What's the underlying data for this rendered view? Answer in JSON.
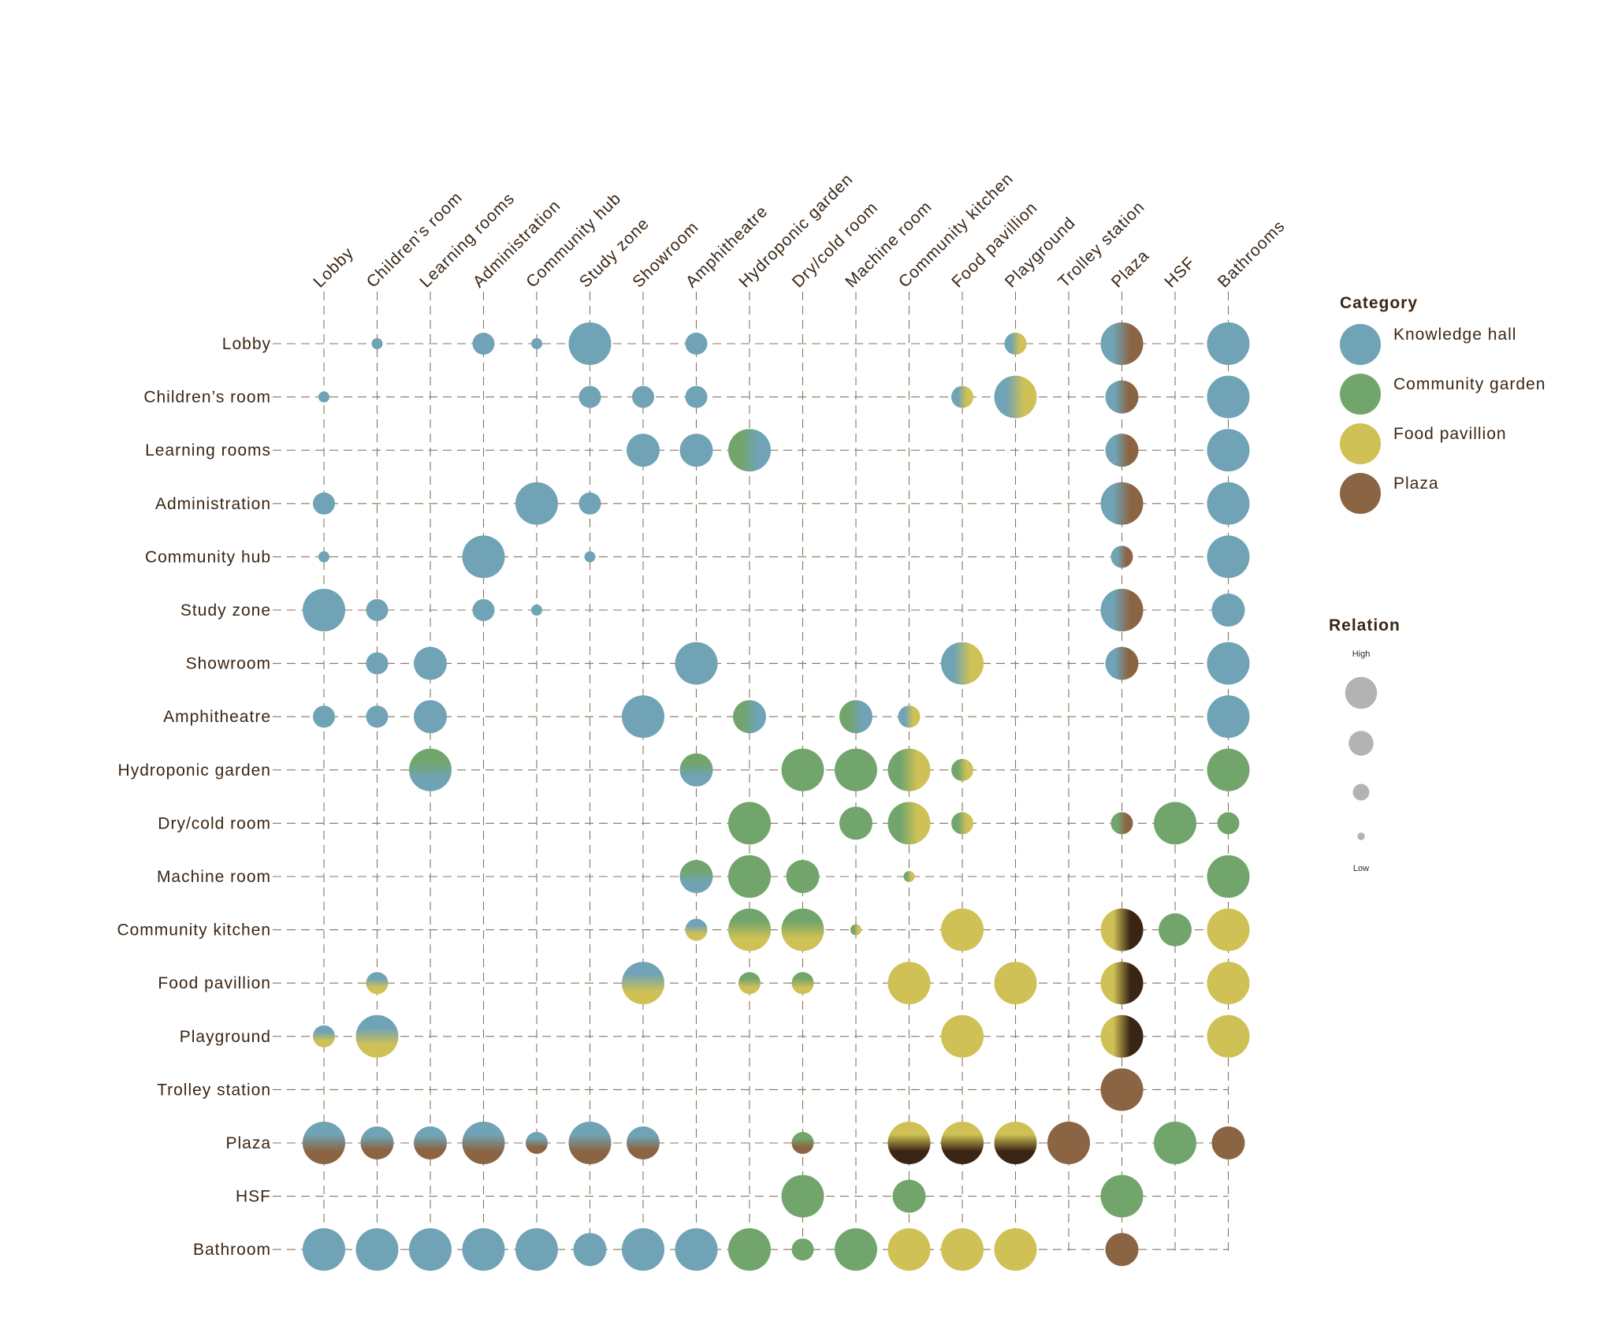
{
  "chart_data": {
    "type": "bubble-matrix",
    "rows": [
      "Lobby",
      "Children’s room",
      "Learning rooms",
      "Administration",
      "Community hub",
      "Study zone",
      "Showroom",
      "Amphitheatre",
      "Hydroponic garden",
      "Dry/cold room",
      "Machine room",
      "Community kitchen",
      "Food pavillion",
      "Playground",
      "Trolley station",
      "Plaza",
      "HSF",
      "Bathroom"
    ],
    "columns": [
      "Lobby",
      "Children’s room",
      "Learning rooms",
      "Administration",
      "Community hub",
      "Study zone",
      "Showroom",
      "Amphitheatre",
      "Hydroponic garden",
      "Dry/cold room",
      "Machine room",
      "Community kitchen",
      "Food pavillion",
      "Playground",
      "Trolley station",
      "Plaza",
      "HSF",
      "Bathrooms"
    ],
    "relation_scale": {
      "min": 1,
      "max": 4,
      "high_label": "High",
      "low_label": "Low"
    },
    "category_colors": {
      "K": "#6fa3b5",
      "G": "#72a56c",
      "F": "#cfc155",
      "P": "#8b6443",
      "D": "#3a2414"
    },
    "points": [
      {
        "r": 0,
        "c": 1,
        "v": 1,
        "cat": "K"
      },
      {
        "r": 0,
        "c": 3,
        "v": 2,
        "cat": "K"
      },
      {
        "r": 0,
        "c": 4,
        "v": 1,
        "cat": "K"
      },
      {
        "r": 0,
        "c": 5,
        "v": 4,
        "cat": "K"
      },
      {
        "r": 0,
        "c": 7,
        "v": 2,
        "cat": "K"
      },
      {
        "r": 0,
        "c": 13,
        "v": 2,
        "cat": "KF",
        "dir": "h"
      },
      {
        "r": 0,
        "c": 15,
        "v": 4,
        "cat": "KP",
        "dir": "h"
      },
      {
        "r": 0,
        "c": 17,
        "v": 4,
        "cat": "K"
      },
      {
        "r": 1,
        "c": 0,
        "v": 1,
        "cat": "K"
      },
      {
        "r": 1,
        "c": 5,
        "v": 2,
        "cat": "K"
      },
      {
        "r": 1,
        "c": 6,
        "v": 2,
        "cat": "K"
      },
      {
        "r": 1,
        "c": 7,
        "v": 2,
        "cat": "K"
      },
      {
        "r": 1,
        "c": 12,
        "v": 2,
        "cat": "KF",
        "dir": "h"
      },
      {
        "r": 1,
        "c": 13,
        "v": 4,
        "cat": "KF",
        "dir": "h"
      },
      {
        "r": 1,
        "c": 15,
        "v": 3,
        "cat": "KP",
        "dir": "h"
      },
      {
        "r": 1,
        "c": 17,
        "v": 4,
        "cat": "K"
      },
      {
        "r": 2,
        "c": 6,
        "v": 3,
        "cat": "K"
      },
      {
        "r": 2,
        "c": 7,
        "v": 3,
        "cat": "K"
      },
      {
        "r": 2,
        "c": 8,
        "v": 4,
        "cat": "GK",
        "dir": "h"
      },
      {
        "r": 2,
        "c": 15,
        "v": 3,
        "cat": "KP",
        "dir": "h"
      },
      {
        "r": 2,
        "c": 17,
        "v": 4,
        "cat": "K"
      },
      {
        "r": 3,
        "c": 0,
        "v": 2,
        "cat": "K"
      },
      {
        "r": 3,
        "c": 4,
        "v": 4,
        "cat": "K"
      },
      {
        "r": 3,
        "c": 5,
        "v": 2,
        "cat": "K"
      },
      {
        "r": 3,
        "c": 15,
        "v": 4,
        "cat": "KP",
        "dir": "h"
      },
      {
        "r": 3,
        "c": 17,
        "v": 4,
        "cat": "K"
      },
      {
        "r": 4,
        "c": 0,
        "v": 1,
        "cat": "K"
      },
      {
        "r": 4,
        "c": 3,
        "v": 4,
        "cat": "K"
      },
      {
        "r": 4,
        "c": 5,
        "v": 1,
        "cat": "K"
      },
      {
        "r": 4,
        "c": 15,
        "v": 2,
        "cat": "KP",
        "dir": "h"
      },
      {
        "r": 4,
        "c": 17,
        "v": 4,
        "cat": "K"
      },
      {
        "r": 5,
        "c": 0,
        "v": 4,
        "cat": "K"
      },
      {
        "r": 5,
        "c": 1,
        "v": 2,
        "cat": "K"
      },
      {
        "r": 5,
        "c": 3,
        "v": 2,
        "cat": "K"
      },
      {
        "r": 5,
        "c": 4,
        "v": 1,
        "cat": "K"
      },
      {
        "r": 5,
        "c": 15,
        "v": 4,
        "cat": "KP",
        "dir": "h"
      },
      {
        "r": 5,
        "c": 17,
        "v": 3,
        "cat": "K"
      },
      {
        "r": 6,
        "c": 1,
        "v": 2,
        "cat": "K"
      },
      {
        "r": 6,
        "c": 2,
        "v": 3,
        "cat": "K"
      },
      {
        "r": 6,
        "c": 7,
        "v": 4,
        "cat": "K"
      },
      {
        "r": 6,
        "c": 12,
        "v": 4,
        "cat": "KF",
        "dir": "h"
      },
      {
        "r": 6,
        "c": 15,
        "v": 3,
        "cat": "KP",
        "dir": "h"
      },
      {
        "r": 6,
        "c": 17,
        "v": 4,
        "cat": "K"
      },
      {
        "r": 7,
        "c": 0,
        "v": 2,
        "cat": "K"
      },
      {
        "r": 7,
        "c": 1,
        "v": 2,
        "cat": "K"
      },
      {
        "r": 7,
        "c": 2,
        "v": 3,
        "cat": "K"
      },
      {
        "r": 7,
        "c": 6,
        "v": 4,
        "cat": "K"
      },
      {
        "r": 7,
        "c": 8,
        "v": 3,
        "cat": "GK",
        "dir": "h"
      },
      {
        "r": 7,
        "c": 10,
        "v": 3,
        "cat": "GK",
        "dir": "h"
      },
      {
        "r": 7,
        "c": 11,
        "v": 2,
        "cat": "KF",
        "dir": "h"
      },
      {
        "r": 7,
        "c": 17,
        "v": 4,
        "cat": "K"
      },
      {
        "r": 8,
        "c": 2,
        "v": 4,
        "cat": "GK",
        "dir": "v"
      },
      {
        "r": 8,
        "c": 7,
        "v": 3,
        "cat": "GK",
        "dir": "v"
      },
      {
        "r": 8,
        "c": 9,
        "v": 4,
        "cat": "G"
      },
      {
        "r": 8,
        "c": 10,
        "v": 4,
        "cat": "G"
      },
      {
        "r": 8,
        "c": 11,
        "v": 4,
        "cat": "GF",
        "dir": "h"
      },
      {
        "r": 8,
        "c": 12,
        "v": 2,
        "cat": "GF",
        "dir": "h"
      },
      {
        "r": 8,
        "c": 17,
        "v": 4,
        "cat": "G"
      },
      {
        "r": 9,
        "c": 8,
        "v": 4,
        "cat": "G"
      },
      {
        "r": 9,
        "c": 10,
        "v": 3,
        "cat": "G"
      },
      {
        "r": 9,
        "c": 11,
        "v": 4,
        "cat": "GF",
        "dir": "h"
      },
      {
        "r": 9,
        "c": 12,
        "v": 2,
        "cat": "GF",
        "dir": "h"
      },
      {
        "r": 9,
        "c": 15,
        "v": 2,
        "cat": "GP",
        "dir": "h"
      },
      {
        "r": 9,
        "c": 16,
        "v": 4,
        "cat": "G"
      },
      {
        "r": 9,
        "c": 17,
        "v": 2,
        "cat": "G"
      },
      {
        "r": 10,
        "c": 7,
        "v": 3,
        "cat": "GK",
        "dir": "v"
      },
      {
        "r": 10,
        "c": 8,
        "v": 4,
        "cat": "G"
      },
      {
        "r": 10,
        "c": 9,
        "v": 3,
        "cat": "G"
      },
      {
        "r": 10,
        "c": 11,
        "v": 1,
        "cat": "GF",
        "dir": "h"
      },
      {
        "r": 10,
        "c": 17,
        "v": 4,
        "cat": "G"
      },
      {
        "r": 11,
        "c": 7,
        "v": 2,
        "cat": "KF",
        "dir": "v"
      },
      {
        "r": 11,
        "c": 8,
        "v": 4,
        "cat": "GF",
        "dir": "v"
      },
      {
        "r": 11,
        "c": 9,
        "v": 4,
        "cat": "GF",
        "dir": "v"
      },
      {
        "r": 11,
        "c": 10,
        "v": 1,
        "cat": "GF",
        "dir": "h"
      },
      {
        "r": 11,
        "c": 12,
        "v": 4,
        "cat": "F"
      },
      {
        "r": 11,
        "c": 15,
        "v": 4,
        "cat": "FD",
        "dir": "h"
      },
      {
        "r": 11,
        "c": 16,
        "v": 3,
        "cat": "G"
      },
      {
        "r": 11,
        "c": 17,
        "v": 4,
        "cat": "F"
      },
      {
        "r": 12,
        "c": 1,
        "v": 2,
        "cat": "KF",
        "dir": "v"
      },
      {
        "r": 12,
        "c": 6,
        "v": 4,
        "cat": "KF",
        "dir": "v"
      },
      {
        "r": 12,
        "c": 8,
        "v": 2,
        "cat": "GF",
        "dir": "v"
      },
      {
        "r": 12,
        "c": 9,
        "v": 2,
        "cat": "GF",
        "dir": "v"
      },
      {
        "r": 12,
        "c": 11,
        "v": 4,
        "cat": "F"
      },
      {
        "r": 12,
        "c": 13,
        "v": 4,
        "cat": "F"
      },
      {
        "r": 12,
        "c": 15,
        "v": 4,
        "cat": "FD",
        "dir": "h"
      },
      {
        "r": 12,
        "c": 17,
        "v": 4,
        "cat": "F"
      },
      {
        "r": 13,
        "c": 0,
        "v": 2,
        "cat": "KF",
        "dir": "v"
      },
      {
        "r": 13,
        "c": 1,
        "v": 4,
        "cat": "KF",
        "dir": "v"
      },
      {
        "r": 13,
        "c": 12,
        "v": 4,
        "cat": "F"
      },
      {
        "r": 13,
        "c": 15,
        "v": 4,
        "cat": "FD",
        "dir": "h"
      },
      {
        "r": 13,
        "c": 17,
        "v": 4,
        "cat": "F"
      },
      {
        "r": 14,
        "c": 15,
        "v": 4,
        "cat": "P"
      },
      {
        "r": 15,
        "c": 0,
        "v": 4,
        "cat": "KP",
        "dir": "v"
      },
      {
        "r": 15,
        "c": 1,
        "v": 3,
        "cat": "KP",
        "dir": "v"
      },
      {
        "r": 15,
        "c": 2,
        "v": 3,
        "cat": "KP",
        "dir": "v"
      },
      {
        "r": 15,
        "c": 3,
        "v": 4,
        "cat": "KP",
        "dir": "v"
      },
      {
        "r": 15,
        "c": 4,
        "v": 2,
        "cat": "KP",
        "dir": "v"
      },
      {
        "r": 15,
        "c": 5,
        "v": 4,
        "cat": "KP",
        "dir": "v"
      },
      {
        "r": 15,
        "c": 6,
        "v": 3,
        "cat": "KP",
        "dir": "v"
      },
      {
        "r": 15,
        "c": 9,
        "v": 2,
        "cat": "GP",
        "dir": "v"
      },
      {
        "r": 15,
        "c": 11,
        "v": 4,
        "cat": "FD",
        "dir": "v"
      },
      {
        "r": 15,
        "c": 12,
        "v": 4,
        "cat": "FD",
        "dir": "v"
      },
      {
        "r": 15,
        "c": 13,
        "v": 4,
        "cat": "FD",
        "dir": "v"
      },
      {
        "r": 15,
        "c": 14,
        "v": 4,
        "cat": "P"
      },
      {
        "r": 15,
        "c": 16,
        "v": 4,
        "cat": "G"
      },
      {
        "r": 15,
        "c": 17,
        "v": 3,
        "cat": "P"
      },
      {
        "r": 16,
        "c": 9,
        "v": 4,
        "cat": "G"
      },
      {
        "r": 16,
        "c": 11,
        "v": 3,
        "cat": "G"
      },
      {
        "r": 16,
        "c": 15,
        "v": 4,
        "cat": "G"
      },
      {
        "r": 17,
        "c": 0,
        "v": 4,
        "cat": "K"
      },
      {
        "r": 17,
        "c": 1,
        "v": 4,
        "cat": "K"
      },
      {
        "r": 17,
        "c": 2,
        "v": 4,
        "cat": "K"
      },
      {
        "r": 17,
        "c": 3,
        "v": 4,
        "cat": "K"
      },
      {
        "r": 17,
        "c": 4,
        "v": 4,
        "cat": "K"
      },
      {
        "r": 17,
        "c": 5,
        "v": 3,
        "cat": "K"
      },
      {
        "r": 17,
        "c": 6,
        "v": 4,
        "cat": "K"
      },
      {
        "r": 17,
        "c": 7,
        "v": 4,
        "cat": "K"
      },
      {
        "r": 17,
        "c": 8,
        "v": 4,
        "cat": "G"
      },
      {
        "r": 17,
        "c": 9,
        "v": 2,
        "cat": "G"
      },
      {
        "r": 17,
        "c": 10,
        "v": 4,
        "cat": "G"
      },
      {
        "r": 17,
        "c": 11,
        "v": 4,
        "cat": "F"
      },
      {
        "r": 17,
        "c": 12,
        "v": 4,
        "cat": "F"
      },
      {
        "r": 17,
        "c": 13,
        "v": 4,
        "cat": "F"
      },
      {
        "r": 17,
        "c": 15,
        "v": 3,
        "cat": "P"
      }
    ],
    "legend": {
      "category_title": "Category",
      "categories": [
        {
          "label": "Knowledge hall",
          "color": "#6fa3b5"
        },
        {
          "label": "Community garden",
          "color": "#72a56c"
        },
        {
          "label": "Food pavillion",
          "color": "#cfc155"
        },
        {
          "label": "Plaza",
          "color": "#8b6443"
        }
      ],
      "relation_title": "Relation",
      "relation_high": "High",
      "relation_low": "Low",
      "relation_levels": [
        4,
        3,
        2,
        1
      ],
      "relation_color": "#b3b3b3"
    }
  }
}
